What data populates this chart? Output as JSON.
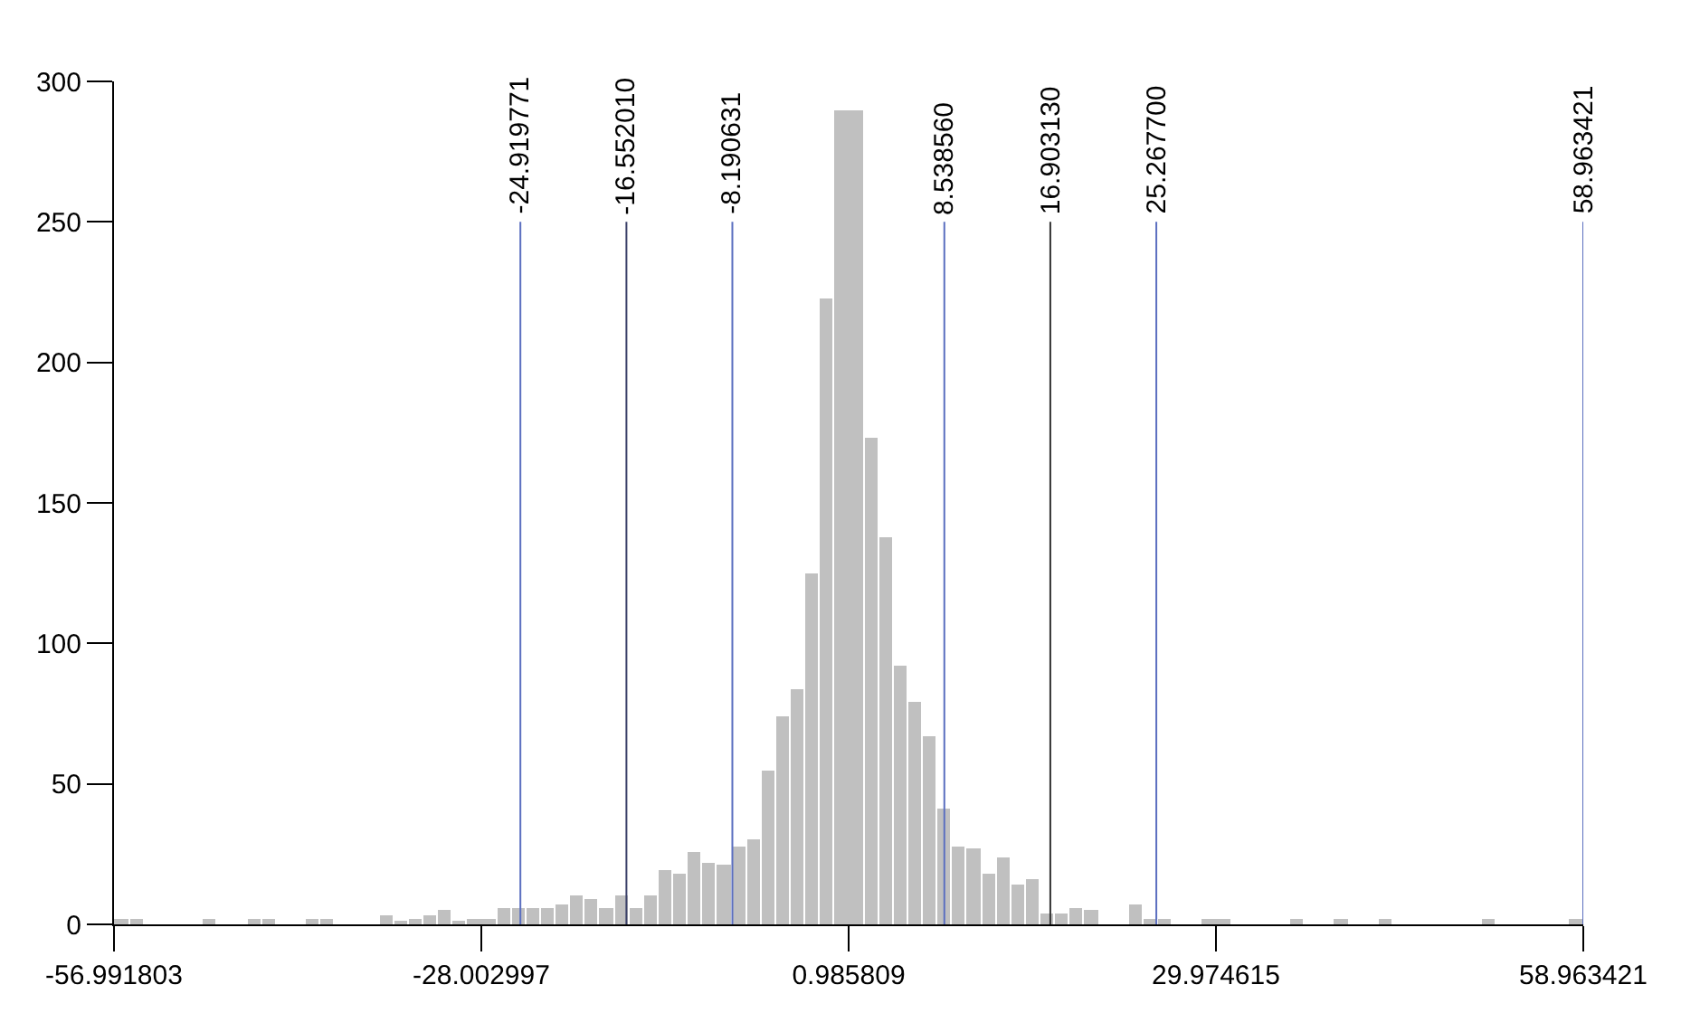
{
  "chart_data": {
    "type": "histogram",
    "bins": [
      -56.991803,
      -55.832251,
      -54.672699,
      -53.513147,
      -52.353595,
      -51.194043,
      -50.034491,
      -48.874939,
      -47.715387,
      -46.555835,
      -45.396283,
      -44.236731,
      -43.077179,
      -41.917627,
      -40.758075,
      -39.598523,
      -38.438971,
      -37.279419,
      -36.119867,
      -34.960315,
      -33.800763,
      -32.641211,
      -31.481659,
      -30.322107,
      -29.162555,
      -28.003003,
      -26.843451,
      -25.683899,
      -24.524347,
      -23.364795,
      -22.205243,
      -21.045691,
      -19.886139,
      -18.726587,
      -17.567035,
      -16.407483,
      -15.247931,
      -14.088379,
      -12.928827,
      -11.769275,
      -10.609723,
      -9.450171,
      -8.290619,
      -7.131067,
      -5.971515,
      -4.811963,
      -3.652411,
      -2.492859,
      -1.333307,
      -0.173755,
      0.985797,
      2.145349,
      3.304901,
      4.464453,
      5.624005,
      6.783557,
      7.943109,
      9.102661,
      10.262213,
      11.421765,
      12.581317,
      13.740869,
      14.900421,
      16.059973,
      17.219525,
      18.379077,
      19.538629,
      20.698181,
      21.857733,
      23.017285,
      24.176837,
      25.336389,
      26.495941,
      27.655493,
      28.815045,
      29.974597,
      31.134149,
      32.293701,
      33.453253,
      34.612805,
      35.772357,
      36.931909,
      38.091461,
      39.251013,
      40.410565,
      41.570117,
      42.729669,
      43.889221,
      45.048773,
      46.208325,
      47.367877,
      48.527429,
      49.686981,
      50.846533,
      52.006085,
      53.165637,
      54.325189,
      55.484741,
      56.644293,
      57.803845,
      58.963421
    ],
    "values": [
      2,
      2,
      0,
      0,
      0,
      0,
      2,
      0,
      0,
      2,
      2,
      0,
      0,
      2,
      2,
      0,
      0,
      0,
      3,
      1,
      2,
      3,
      5,
      1,
      2,
      2,
      6,
      6,
      6,
      6,
      7,
      10,
      9,
      6,
      10,
      6,
      10,
      19,
      18,
      26,
      22,
      21,
      28,
      30,
      55,
      74,
      84,
      125,
      223,
      290,
      290,
      173,
      138,
      92,
      79,
      67,
      41,
      28,
      27,
      18,
      24,
      14,
      16,
      4,
      4,
      6,
      5,
      0,
      0,
      7,
      2,
      2,
      0,
      0,
      2,
      2,
      0,
      0,
      0,
      0,
      2,
      0,
      0,
      2,
      0,
      0,
      2,
      0,
      0,
      0,
      0,
      0,
      0,
      2,
      0,
      0,
      0,
      0,
      0,
      2
    ],
    "color": "#c0c0c0",
    "xlim": [
      -56.991803,
      58.963421
    ],
    "xticks": [
      -56.991803,
      -28.002997,
      0.985809,
      29.974615,
      58.963421
    ],
    "ylim": [
      0,
      300
    ],
    "yticks": [
      0,
      50,
      100,
      150,
      200,
      250,
      300
    ],
    "ref_lines": [
      {
        "axis": "x",
        "value": -24.919771,
        "label": "-24.919771",
        "color": "#5b6fc0"
      },
      {
        "axis": "x",
        "value": -16.55201,
        "label": "-16.552010",
        "color": "#3a4068"
      },
      {
        "axis": "x",
        "value": -8.190631,
        "label": "-8.190631",
        "color": "#5b6fc0"
      },
      {
        "axis": "x",
        "value": 8.53856,
        "label": "8.538560",
        "color": "#5b6fc0"
      },
      {
        "axis": "x",
        "value": 16.90313,
        "label": "16.903130",
        "color": "#333333"
      },
      {
        "axis": "x",
        "value": 25.2677,
        "label": "25.267700",
        "color": "#5b6fc0"
      },
      {
        "axis": "x",
        "value": 58.963421,
        "label": "58.963421",
        "color": "#5b6fc0"
      }
    ]
  }
}
